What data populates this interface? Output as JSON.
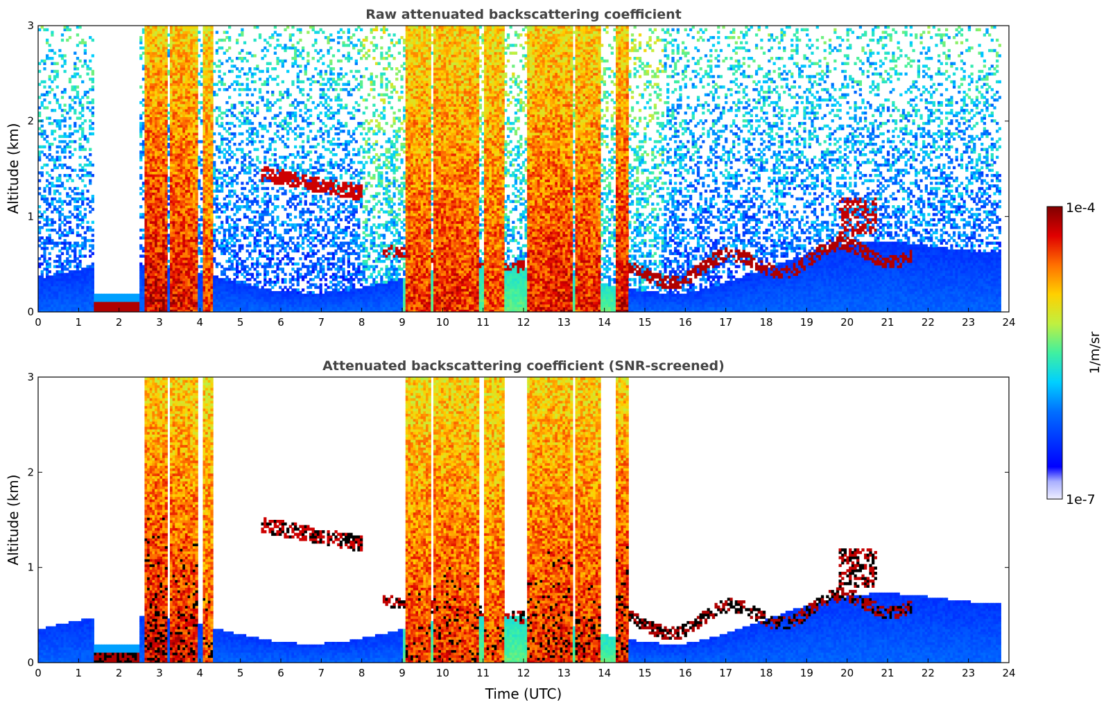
{
  "chart_data": [
    {
      "type": "heatmap",
      "title": "Raw attenuated backscattering coefficient",
      "xlabel": "",
      "ylabel": "Altitude (km)",
      "xlim": [
        0,
        24
      ],
      "ylim": [
        0,
        3
      ],
      "xticks": [
        "0",
        "1",
        "2",
        "3",
        "4",
        "5",
        "6",
        "7",
        "8",
        "9",
        "10",
        "11",
        "12",
        "13",
        "14",
        "15",
        "16",
        "17",
        "18",
        "19",
        "20",
        "21",
        "22",
        "23",
        "24"
      ],
      "yticks": [
        "0",
        "1",
        "2",
        "3"
      ],
      "data_end_hour": 23.8,
      "layers": [
        {
          "feature": "boundary-layer aerosol",
          "x": [
            0,
            23.8
          ],
          "y": [
            0,
            0.5
          ],
          "level": "low"
        },
        {
          "feature": "clear gap",
          "x": [
            1.4,
            2.5
          ],
          "y": [
            0.2,
            3.0
          ],
          "level": "none"
        },
        {
          "feature": "low cloud/fog",
          "x": [
            1.4,
            2.5
          ],
          "y": [
            0,
            0.15
          ],
          "level": "high"
        },
        {
          "feature": "precipitation column",
          "x": [
            2.6,
            4.3
          ],
          "y": [
            0,
            3.0
          ],
          "level": "high"
        },
        {
          "feature": "elevated layer",
          "x": [
            5.5,
            8.0
          ],
          "y": [
            1.2,
            1.6
          ],
          "level": "high"
        },
        {
          "feature": "precipitation column",
          "x": [
            9.0,
            11.5
          ],
          "y": [
            0,
            3.0
          ],
          "level": "high"
        },
        {
          "feature": "precipitation column",
          "x": [
            12.0,
            14.3
          ],
          "y": [
            0,
            3.0
          ],
          "level": "high"
        },
        {
          "feature": "cloud base",
          "x": [
            14.5,
            21.5
          ],
          "y": [
            0.3,
            0.8
          ],
          "level": "high"
        },
        {
          "feature": "elevated cloud",
          "x": [
            19.8,
            20.7
          ],
          "y": [
            0.8,
            1.2
          ],
          "level": "high"
        }
      ]
    },
    {
      "type": "heatmap",
      "title": "Attenuated backscattering coefficient (SNR-screened)",
      "xlabel": "Time (UTC)",
      "ylabel": "Altitude (km)",
      "xlim": [
        0,
        24
      ],
      "ylim": [
        0,
        3
      ],
      "xticks": [
        "0",
        "1",
        "2",
        "3",
        "4",
        "5",
        "6",
        "7",
        "8",
        "9",
        "10",
        "11",
        "12",
        "13",
        "14",
        "15",
        "16",
        "17",
        "18",
        "19",
        "20",
        "21",
        "22",
        "23",
        "24"
      ],
      "yticks": [
        "0",
        "1",
        "2",
        "3"
      ],
      "data_end_hour": 23.8
    }
  ],
  "colorbar": {
    "label": "1/m/sr",
    "max_label": "1e-4",
    "min_label": "1e-7",
    "scale": "log",
    "colormap": "jet",
    "range": [
      1e-07,
      0.0001
    ]
  }
}
